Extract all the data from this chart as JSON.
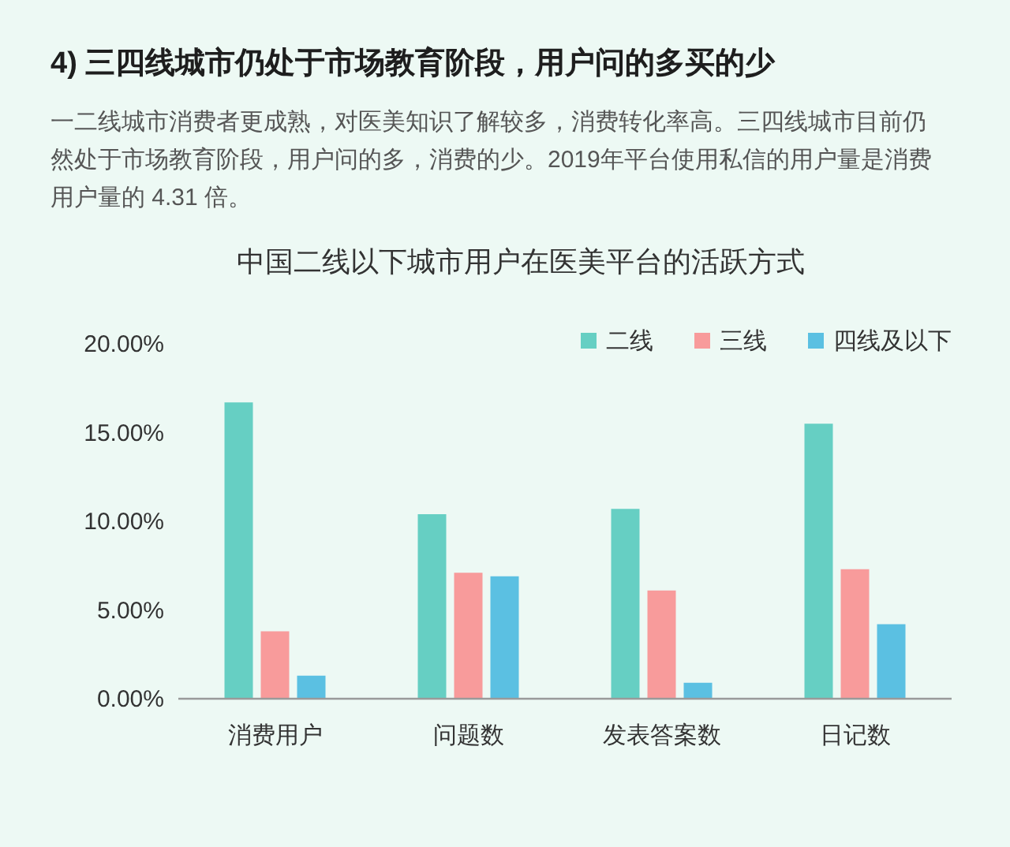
{
  "chart_data": {
    "type": "bar",
    "title": "4) 三四线城市仍处于市场教育阶段，用户问的多买的少",
    "subtitle": "一二线城市消费者更成熟，对医美知识了解较多，消费转化率高。三四线城市目前仍然处于市场教育阶段，用户问的多，消费的少。2019年平台使用私信的用户量是消费用户量的 4.31 倍。",
    "annotations": [
      "中国二线以下城市用户在医美平台的活跃方式"
    ],
    "categories": [
      "消费用户",
      "问题数",
      "发表答案数",
      "日记数"
    ],
    "series": [
      {
        "name": "二线",
        "color": "#66cfc3",
        "values": [
          16.7,
          10.4,
          10.7,
          15.5
        ]
      },
      {
        "name": "三线",
        "color": "#f89b9b",
        "values": [
          3.8,
          7.1,
          6.1,
          7.3
        ]
      },
      {
        "name": "四线及以下",
        "color": "#5bc0e2",
        "values": [
          1.3,
          6.9,
          0.9,
          4.2
        ]
      }
    ],
    "ylim": [
      0,
      20
    ],
    "yticks": [
      {
        "value": 0,
        "label": "0.00%"
      },
      {
        "value": 5,
        "label": "5.00%"
      },
      {
        "value": 10,
        "label": "10.00%"
      },
      {
        "value": 15,
        "label": "15.00%"
      },
      {
        "value": 20,
        "label": "20.00%"
      }
    ],
    "legend": "top right"
  }
}
